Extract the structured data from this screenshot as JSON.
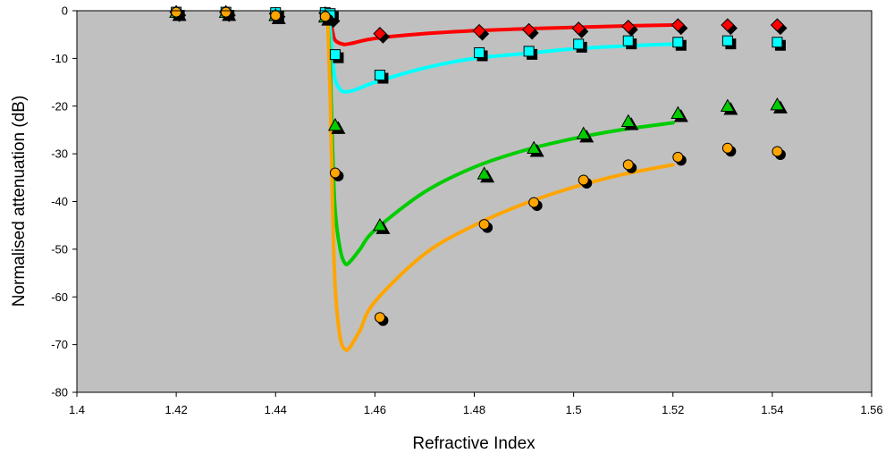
{
  "chart_data": {
    "type": "scatter",
    "title": "",
    "xlabel": "Refractive Index",
    "ylabel": "Normalised attenuation (dB)",
    "xlim": [
      1.4,
      1.56
    ],
    "ylim": [
      -80,
      0
    ],
    "x_ticks": [
      1.4,
      1.42,
      1.44,
      1.46,
      1.48,
      1.5,
      1.52,
      1.54,
      1.56
    ],
    "x_tick_labels": [
      "1.4",
      "1.42",
      "1.44",
      "1.46",
      "1.48",
      "1.5",
      "1.52",
      "1.54",
      "1.56"
    ],
    "y_ticks": [
      0,
      -10,
      -20,
      -30,
      -40,
      -50,
      -60,
      -70,
      -80
    ],
    "y_tick_labels": [
      "0",
      "-10",
      "-20",
      "-30",
      "-40",
      "-50",
      "-60",
      "-70",
      "-80"
    ],
    "grid": false,
    "legend": "none",
    "plot_background": "#c0c0c0",
    "series": [
      {
        "color": "#ff0000",
        "marker": "diamond",
        "points": [
          [
            1.42,
            -0.3
          ],
          [
            1.43,
            -0.3
          ],
          [
            1.44,
            -0.6
          ],
          [
            1.45,
            -0.5
          ],
          [
            1.451,
            -1.5
          ],
          [
            1.461,
            -4.8
          ],
          [
            1.481,
            -4.2
          ],
          [
            1.491,
            -4.0
          ],
          [
            1.501,
            -3.7
          ],
          [
            1.511,
            -3.3
          ],
          [
            1.521,
            -3.0
          ],
          [
            1.531,
            -3.0
          ],
          [
            1.541,
            -3.0
          ]
        ],
        "curve": [
          [
            1.4505,
            -0.3
          ],
          [
            1.451,
            -2.0
          ],
          [
            1.4515,
            -4.5
          ],
          [
            1.452,
            -6.2
          ],
          [
            1.4535,
            -7.0
          ],
          [
            1.455,
            -6.9
          ],
          [
            1.46,
            -5.8
          ],
          [
            1.47,
            -4.8
          ],
          [
            1.48,
            -4.2
          ],
          [
            1.49,
            -3.8
          ],
          [
            1.5,
            -3.5
          ],
          [
            1.51,
            -3.2
          ],
          [
            1.52,
            -3.0
          ]
        ]
      },
      {
        "color": "#00ffff",
        "marker": "square",
        "points": [
          [
            1.42,
            -0.3
          ],
          [
            1.43,
            -0.3
          ],
          [
            1.44,
            -0.4
          ],
          [
            1.45,
            -0.4
          ],
          [
            1.451,
            -0.6
          ],
          [
            1.452,
            -9.2
          ],
          [
            1.461,
            -13.5
          ],
          [
            1.481,
            -8.8
          ],
          [
            1.491,
            -8.5
          ],
          [
            1.501,
            -7.0
          ],
          [
            1.511,
            -6.3
          ],
          [
            1.521,
            -6.6
          ],
          [
            1.531,
            -6.3
          ],
          [
            1.541,
            -6.6
          ]
        ],
        "curve": [
          [
            1.4505,
            -0.5
          ],
          [
            1.451,
            -4.0
          ],
          [
            1.4515,
            -10.0
          ],
          [
            1.452,
            -14.5
          ],
          [
            1.453,
            -16.5
          ],
          [
            1.454,
            -17.0
          ],
          [
            1.456,
            -16.6
          ],
          [
            1.46,
            -15.0
          ],
          [
            1.47,
            -12.0
          ],
          [
            1.48,
            -10.0
          ],
          [
            1.49,
            -9.0
          ],
          [
            1.5,
            -8.0
          ],
          [
            1.51,
            -7.4
          ],
          [
            1.52,
            -7.0
          ]
        ]
      },
      {
        "color": "#00cc00",
        "marker": "triangle",
        "points": [
          [
            1.42,
            -0.3
          ],
          [
            1.43,
            -0.3
          ],
          [
            1.44,
            -1.0
          ],
          [
            1.45,
            -1.3
          ],
          [
            1.452,
            -24.0
          ],
          [
            1.461,
            -45.0
          ],
          [
            1.482,
            -34.2
          ],
          [
            1.492,
            -28.8
          ],
          [
            1.502,
            -25.8
          ],
          [
            1.511,
            -23.2
          ],
          [
            1.521,
            -21.5
          ],
          [
            1.531,
            -20.0
          ],
          [
            1.541,
            -19.7
          ]
        ],
        "curve": [
          [
            1.4505,
            -2.0
          ],
          [
            1.451,
            -12.0
          ],
          [
            1.4515,
            -30.0
          ],
          [
            1.452,
            -42.0
          ],
          [
            1.453,
            -50.0
          ],
          [
            1.454,
            -53.0
          ],
          [
            1.455,
            -52.6
          ],
          [
            1.457,
            -50.0
          ],
          [
            1.46,
            -46.0
          ],
          [
            1.47,
            -38.0
          ],
          [
            1.48,
            -32.8
          ],
          [
            1.49,
            -29.3
          ],
          [
            1.5,
            -26.8
          ],
          [
            1.51,
            -24.9
          ],
          [
            1.52,
            -23.5
          ]
        ]
      },
      {
        "color": "#ffa500",
        "marker": "circle",
        "points": [
          [
            1.42,
            -0.3
          ],
          [
            1.43,
            -0.3
          ],
          [
            1.44,
            -1.0
          ],
          [
            1.45,
            -1.2
          ],
          [
            1.452,
            -34.0
          ],
          [
            1.461,
            -64.3
          ],
          [
            1.482,
            -44.8
          ],
          [
            1.492,
            -40.2
          ],
          [
            1.502,
            -35.5
          ],
          [
            1.511,
            -32.3
          ],
          [
            1.521,
            -30.7
          ],
          [
            1.531,
            -28.8
          ],
          [
            1.541,
            -29.5
          ]
        ],
        "curve": [
          [
            1.4505,
            -2.0
          ],
          [
            1.451,
            -18.0
          ],
          [
            1.4515,
            -42.0
          ],
          [
            1.452,
            -58.0
          ],
          [
            1.453,
            -68.5
          ],
          [
            1.454,
            -71.0
          ],
          [
            1.455,
            -70.5
          ],
          [
            1.457,
            -67.0
          ],
          [
            1.46,
            -61.0
          ],
          [
            1.47,
            -51.0
          ],
          [
            1.48,
            -45.0
          ],
          [
            1.49,
            -40.5
          ],
          [
            1.5,
            -37.0
          ],
          [
            1.51,
            -34.3
          ],
          [
            1.52,
            -32.3
          ]
        ]
      }
    ]
  }
}
